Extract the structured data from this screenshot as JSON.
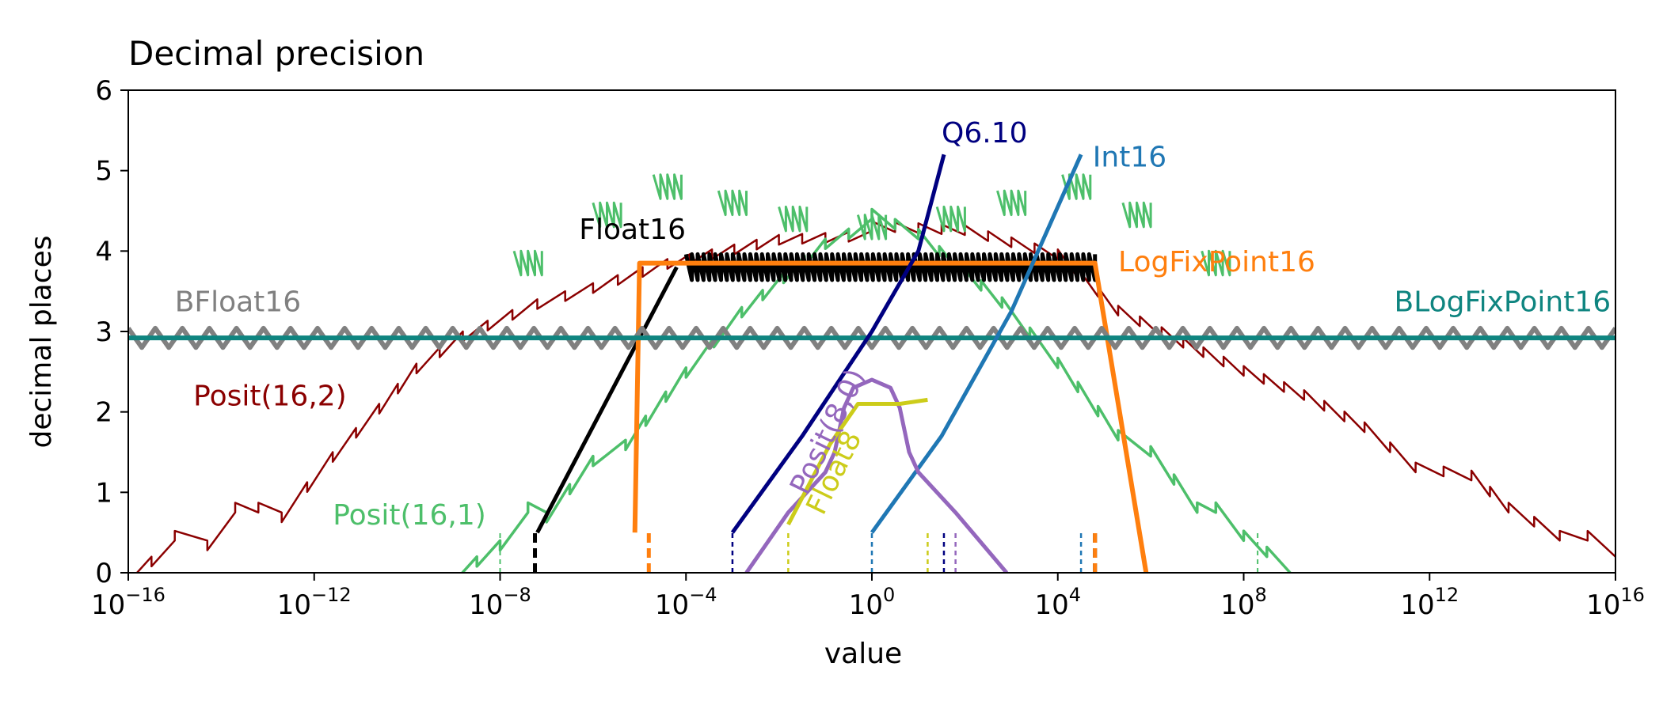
{
  "chart_data": {
    "type": "line",
    "title": "Decimal precision",
    "xlabel": "value",
    "ylabel": "decimal places",
    "xscale": "log",
    "xlim_exponent": [
      -16,
      16
    ],
    "ylim": [
      0,
      6
    ],
    "x_ticks": [
      {
        "base": "10",
        "exp": "−16",
        "value": -16
      },
      {
        "base": "10",
        "exp": "−12",
        "value": -12
      },
      {
        "base": "10",
        "exp": "−8",
        "value": -8
      },
      {
        "base": "10",
        "exp": "−4",
        "value": -4
      },
      {
        "base": "10",
        "exp": "0",
        "value": 0
      },
      {
        "base": "10",
        "exp": "4",
        "value": 4
      },
      {
        "base": "10",
        "exp": "8",
        "value": 8
      },
      {
        "base": "10",
        "exp": "12",
        "value": 12
      },
      {
        "base": "10",
        "exp": "16",
        "value": 16
      }
    ],
    "y_ticks": [
      {
        "label": "0",
        "value": 0
      },
      {
        "label": "1",
        "value": 1
      },
      {
        "label": "2",
        "value": 2
      },
      {
        "label": "3",
        "value": 3
      },
      {
        "label": "4",
        "value": 4
      },
      {
        "label": "5",
        "value": 5
      },
      {
        "label": "6",
        "value": 6
      }
    ],
    "series": [
      {
        "name": "Posit(16,2)",
        "color": "#8b0000",
        "style": "sawtooth",
        "segments": [
          [
            -16.0,
            0.0
          ],
          [
            -15.0,
            0.4
          ],
          [
            -14.3,
            0.4
          ],
          [
            -13.7,
            0.75
          ],
          [
            -12.7,
            0.75
          ],
          [
            -11.6,
            1.5
          ],
          [
            -10.6,
            2.1
          ],
          [
            -9.8,
            2.6
          ],
          [
            -8.8,
            3.0
          ],
          [
            -7.2,
            3.4
          ],
          [
            -6.0,
            3.6
          ],
          [
            -4.4,
            3.9
          ],
          [
            -2.0,
            4.2
          ],
          [
            0.0,
            4.25
          ],
          [
            2.0,
            4.2
          ],
          [
            4.0,
            3.9
          ],
          [
            5.3,
            3.2
          ],
          [
            6.7,
            2.8
          ],
          [
            8.0,
            2.45
          ],
          [
            9.3,
            2.15
          ],
          [
            10.6,
            1.75
          ],
          [
            11.7,
            1.25
          ],
          [
            12.9,
            1.15
          ],
          [
            13.7,
            0.75
          ],
          [
            14.8,
            0.4
          ],
          [
            15.4,
            0.4
          ],
          [
            16.0,
            0.2
          ]
        ],
        "label_text": "Posit(16,2)",
        "label_at": [
          -14.6,
          2.08
        ],
        "label_anchor": "start"
      },
      {
        "name": "Posit(16,1)",
        "color": "#4dbf6a",
        "style": "sawtooth",
        "segments": [
          [
            -9.0,
            0.0
          ],
          [
            -8.0,
            0.4
          ],
          [
            -7.4,
            0.75
          ],
          [
            -7.0,
            0.75
          ],
          [
            -6.0,
            1.45
          ],
          [
            -5.3,
            1.65
          ],
          [
            -4.0,
            2.55
          ],
          [
            -2.8,
            3.3
          ],
          [
            -1.0,
            4.15
          ],
          [
            0.0,
            4.4
          ],
          [
            1.0,
            4.15
          ],
          [
            2.8,
            3.3
          ],
          [
            4.0,
            2.55
          ],
          [
            5.3,
            1.65
          ],
          [
            6.0,
            1.45
          ],
          [
            7.0,
            0.75
          ],
          [
            7.4,
            0.75
          ],
          [
            8.0,
            0.4
          ],
          [
            9.0,
            0.0
          ]
        ],
        "ticks": [
          [
            -7.4,
            4.0
          ],
          [
            -5.7,
            4.6
          ],
          [
            -4.4,
            4.95
          ],
          [
            -3.0,
            4.75
          ],
          [
            -1.7,
            4.55
          ],
          [
            0.0,
            4.45
          ],
          [
            1.7,
            4.55
          ],
          [
            3.0,
            4.75
          ],
          [
            4.4,
            4.95
          ],
          [
            5.7,
            4.6
          ],
          [
            7.4,
            4.0
          ]
        ],
        "drop_x": [
          -8.0,
          8.3
        ],
        "label_text": "Posit(16,1)",
        "label_at": [
          -11.6,
          0.6
        ],
        "label_anchor": "start"
      },
      {
        "name": "Float16",
        "color": "#000000",
        "style": "sawtooth-thick",
        "ramp": [
          [
            -7.2,
            0.5
          ],
          [
            -4.2,
            3.8
          ]
        ],
        "flat": [
          -4.0,
          4.8,
          3.8
        ],
        "drop_x": [
          -7.25,
          4.8
        ],
        "label_text": "Float16",
        "label_at": [
          -6.3,
          4.15
        ],
        "label_anchor": "start"
      },
      {
        "name": "LogFixPoint16",
        "color": "#ff7f0e",
        "style": "solid",
        "points": [
          [
            -5.1,
            0.5
          ],
          [
            -5.0,
            3.85
          ],
          [
            4.8,
            3.85
          ],
          [
            5.9,
            0.0
          ]
        ],
        "drop_x": [
          -4.8,
          4.8
        ],
        "label_text": "LogFixPoint16",
        "label_at": [
          5.3,
          3.75
        ],
        "label_anchor": "start"
      },
      {
        "name": "BFloat16",
        "color": "#808080",
        "style": "zigzag-band",
        "band": [
          -16.0,
          16.0,
          2.92
        ],
        "label_text": "BFloat16",
        "label_at": [
          -15.0,
          3.25
        ],
        "label_anchor": "start"
      },
      {
        "name": "BLogFixPoint16",
        "color": "#0f8580",
        "style": "solid",
        "points": [
          [
            -16.0,
            2.92
          ],
          [
            16.0,
            2.92
          ]
        ],
        "label_text": "BLogFixPoint16",
        "label_at": [
          15.9,
          3.25
        ],
        "label_anchor": "end"
      },
      {
        "name": "Q6.10",
        "color": "#000080",
        "style": "solid",
        "points": [
          [
            -3.0,
            0.5
          ],
          [
            -1.5,
            1.7
          ],
          [
            0.0,
            3.0
          ],
          [
            1.0,
            4.0
          ],
          [
            1.55,
            5.2
          ]
        ],
        "drop_x": [
          -3.0,
          1.55
        ],
        "label_text": "Q6.10",
        "label_at": [
          1.5,
          5.35
        ],
        "label_anchor": "start"
      },
      {
        "name": "Int16",
        "color": "#1f77b4",
        "style": "solid",
        "points": [
          [
            0.0,
            0.5
          ],
          [
            1.5,
            1.7
          ],
          [
            3.0,
            3.25
          ],
          [
            4.5,
            5.2
          ]
        ],
        "drop_x": [
          0.0,
          4.5
        ],
        "label_text": "Int16",
        "label_at": [
          4.75,
          5.05
        ],
        "label_anchor": "start"
      },
      {
        "name": "Posit(8,0)",
        "color": "#9467bd",
        "style": "sawtooth",
        "points": [
          [
            -2.7,
            0.0
          ],
          [
            -1.8,
            0.75
          ],
          [
            -1.0,
            1.25
          ],
          [
            -0.8,
            1.5
          ],
          [
            -0.6,
            2.05
          ],
          [
            -0.4,
            2.3
          ],
          [
            0.0,
            2.4
          ],
          [
            0.4,
            2.3
          ],
          [
            0.6,
            2.05
          ],
          [
            0.8,
            1.5
          ],
          [
            1.0,
            1.25
          ],
          [
            1.8,
            0.75
          ],
          [
            2.9,
            0.0
          ]
        ],
        "drop_x": [
          1.8
        ],
        "label_text": "Posit(8,0)",
        "label_at": [
          -1.4,
          0.95
        ],
        "label_anchor": "start",
        "label_rotate": -64
      },
      {
        "name": "Float8",
        "color": "#cccc1a",
        "style": "sawtooth",
        "points": [
          [
            -1.8,
            0.6
          ],
          [
            -0.9,
            1.6
          ],
          [
            -0.3,
            2.1
          ],
          [
            0.3,
            2.1
          ],
          [
            0.6,
            2.1
          ],
          [
            1.2,
            2.15
          ]
        ],
        "drop_x": [
          -1.8,
          1.2
        ],
        "label_text": "Float8",
        "label_at": [
          -1.05,
          0.7
        ],
        "label_anchor": "start",
        "label_rotate": -64
      }
    ]
  }
}
